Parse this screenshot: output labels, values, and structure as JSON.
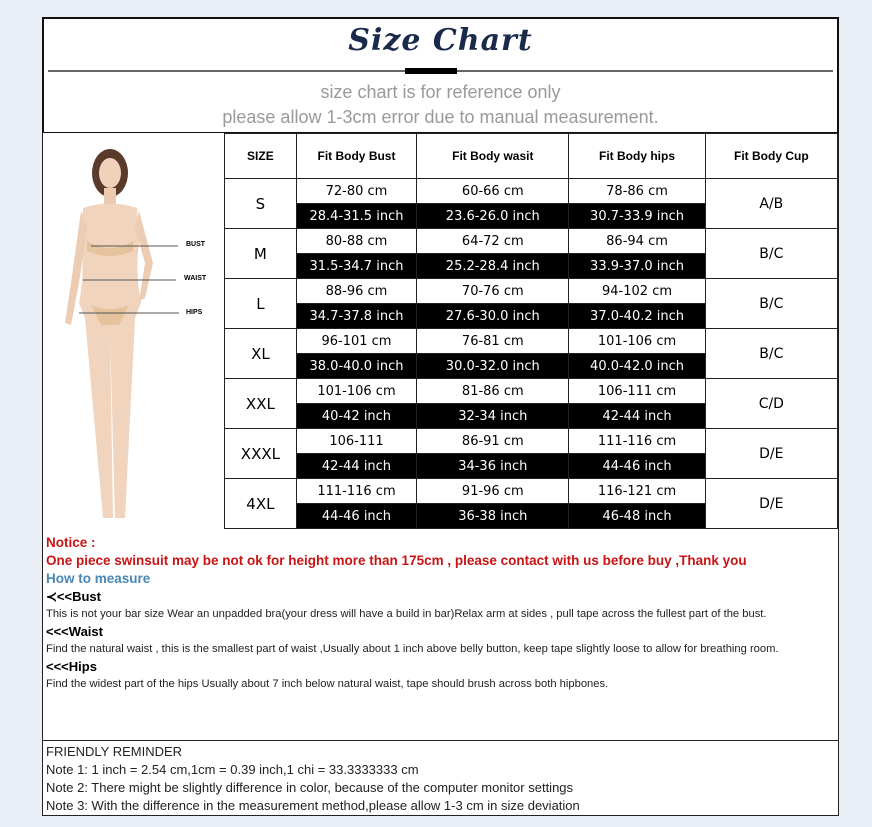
{
  "header": {
    "title": "Size Chart",
    "subtitle_1": "size chart is for reference only",
    "subtitle_2": "please allow 1-3cm error due to manual measurement."
  },
  "figure": {
    "labels": [
      "BUST",
      "WAIST",
      "HIPS"
    ]
  },
  "table": {
    "headers": [
      "SIZE",
      "Fit Body Bust",
      "Fit Body wasit",
      "Fit Body hips",
      "Fit Body Cup"
    ],
    "rows": [
      {
        "size": "S",
        "bust_cm": "72-80 cm",
        "bust_in": "28.4-31.5 inch",
        "waist_cm": "60-66 cm",
        "waist_in": "23.6-26.0 inch",
        "hips_cm": "78-86 cm",
        "hips_in": "30.7-33.9 inch",
        "cup": "A/B"
      },
      {
        "size": "M",
        "bust_cm": "80-88 cm",
        "bust_in": "31.5-34.7 inch",
        "waist_cm": "64-72 cm",
        "waist_in": "25.2-28.4 inch",
        "hips_cm": "86-94 cm",
        "hips_in": "33.9-37.0 inch",
        "cup": "B/C"
      },
      {
        "size": "L",
        "bust_cm": "88-96 cm",
        "bust_in": "34.7-37.8 inch",
        "waist_cm": "70-76 cm",
        "waist_in": "27.6-30.0 inch",
        "hips_cm": "94-102 cm",
        "hips_in": "37.0-40.2 inch",
        "cup": "B/C"
      },
      {
        "size": "XL",
        "bust_cm": "96-101 cm",
        "bust_in": "38.0-40.0 inch",
        "waist_cm": "76-81 cm",
        "waist_in": "30.0-32.0 inch",
        "hips_cm": "101-106 cm",
        "hips_in": "40.0-42.0 inch",
        "cup": "B/C"
      },
      {
        "size": "XXL",
        "bust_cm": "101-106 cm",
        "bust_in": "40-42 inch",
        "waist_cm": "81-86 cm",
        "waist_in": "32-34 inch",
        "hips_cm": "106-111 cm",
        "hips_in": "42-44 inch",
        "cup": "C/D"
      },
      {
        "size": "XXXL",
        "bust_cm": "106-111",
        "bust_in": "42-44 inch",
        "waist_cm": "86-91 cm",
        "waist_in": "34-36 inch",
        "hips_cm": "111-116 cm",
        "hips_in": "44-46 inch",
        "cup": "D/E"
      },
      {
        "size": "4XL",
        "bust_cm": "111-116 cm",
        "bust_in": "44-46 inch",
        "waist_cm": "91-96 cm",
        "waist_in": "36-38 inch",
        "hips_cm": "116-121 cm",
        "hips_in": "46-48 inch",
        "cup": "D/E"
      }
    ]
  },
  "notes": {
    "notice_label": "Notice :",
    "notice_text": "One piece swinsuit may be not ok for height more than 175cm , please contact with us before buy ,Thank you",
    "how_to": "How to measure",
    "bust_heading": "≺<<Bust",
    "bust_text": "This is not your bar size Wear an unpadded bra(your dress will have a build in bar)Relax arm at sides , pull tape across the fullest part of the bust.",
    "waist_heading": "<<<Waist",
    "waist_text": "Find the natural waist , this is the smallest part of waist ,Usually about 1 inch above belly button, keep tape slightly loose to allow for breathing room.",
    "hips_heading": "<<<Hips",
    "hips_text": "Find the widest part of the hips Usually about 7 inch below natural waist, tape should brush across both hipbones."
  },
  "reminder": {
    "title": "FRIENDLY REMINDER",
    "notes": [
      " Note 1: 1 inch = 2.54 cm,1cm = 0.39 inch,1 chi = 33.3333333 cm",
      " Note 2: There might be slightly difference in color, because of the computer monitor settings",
      " Note 3: With the difference in the measurement method,please allow 1-3 cm in size deviation"
    ]
  },
  "colors": {
    "notice": "#c81414",
    "how_to": "#4a87b5",
    "title": "#1a2a4a",
    "background": "#eaeef6"
  }
}
